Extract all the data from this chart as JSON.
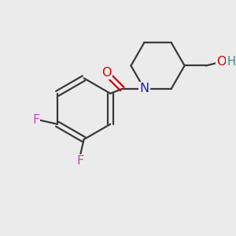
{
  "bg_color": "#ebebeb",
  "bond_color": "#3a3a3a",
  "bond_width": 1.6,
  "atom_colors": {
    "O": "#cc0000",
    "N": "#1a1acc",
    "F": "#cc44cc",
    "OH": "#cc0000",
    "H": "#448888"
  },
  "font_size": 11.5
}
